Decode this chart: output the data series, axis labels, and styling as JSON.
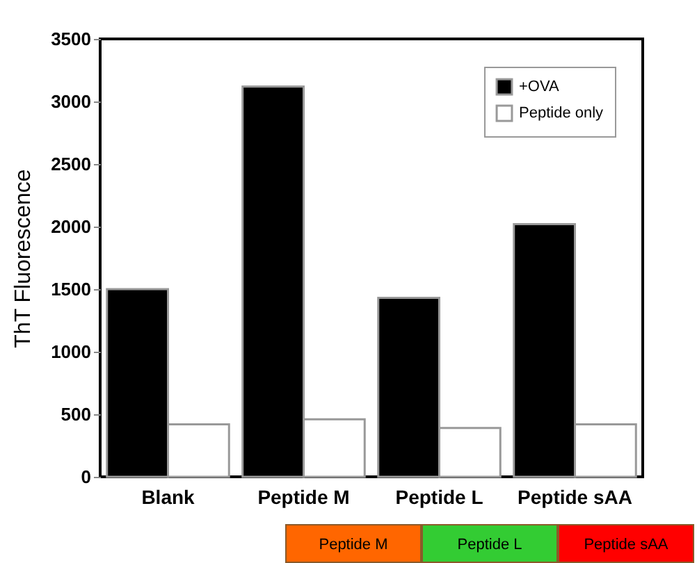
{
  "chart_data": {
    "type": "bar",
    "ylabel": "ThT Fluorescence",
    "categories": [
      "Blank",
      "Peptide M",
      "Peptide L",
      "Peptide sAA"
    ],
    "series": [
      {
        "name": "+OVA",
        "color": "#000000",
        "values": [
          1500,
          3120,
          1430,
          2020
        ]
      },
      {
        "name": "Peptide only",
        "color": "#ffffff",
        "values": [
          420,
          460,
          390,
          420
        ]
      }
    ],
    "ylim": [
      0,
      3500
    ],
    "yticks": [
      0,
      500,
      1000,
      1500,
      2000,
      2500,
      3000,
      3500
    ],
    "grid": false,
    "legend": "top right",
    "annotations": [
      "Peptide M",
      "Peptide L",
      "Peptide sAA"
    ]
  }
}
